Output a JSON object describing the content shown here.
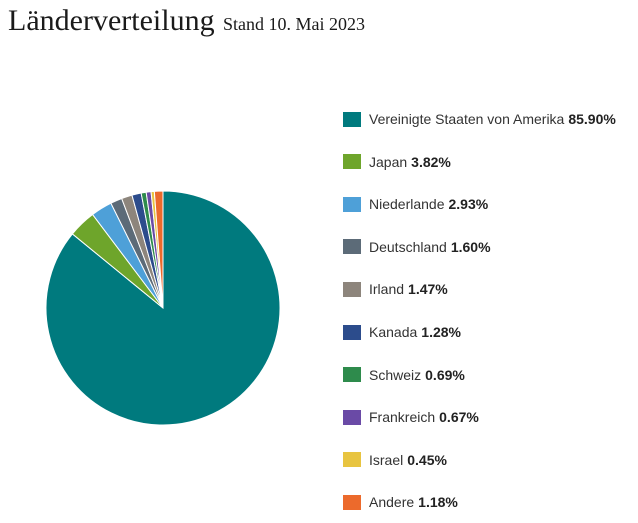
{
  "chart_data": {
    "type": "pie",
    "title": "Länderverteilung",
    "subtitle": "Stand 10. Mai 2023",
    "slices": [
      {
        "label": "Vereinigte Staaten von Amerika",
        "value": 85.9,
        "display": "85.90%",
        "color": "#007a7e"
      },
      {
        "label": "Japan",
        "value": 3.82,
        "display": "3.82%",
        "color": "#6ea52b"
      },
      {
        "label": "Niederlande",
        "value": 2.93,
        "display": "2.93%",
        "color": "#4ea0d8"
      },
      {
        "label": "Deutschland",
        "value": 1.6,
        "display": "1.60%",
        "color": "#5c6b78"
      },
      {
        "label": "Irland",
        "value": 1.47,
        "display": "1.47%",
        "color": "#8d857c"
      },
      {
        "label": "Kanada",
        "value": 1.28,
        "display": "1.28%",
        "color": "#2c4c8c"
      },
      {
        "label": "Schweiz",
        "value": 0.69,
        "display": "0.69%",
        "color": "#2e8b4c"
      },
      {
        "label": "Frankreich",
        "value": 0.67,
        "display": "0.67%",
        "color": "#6a4aa6"
      },
      {
        "label": "Israel",
        "value": 0.45,
        "display": "0.45%",
        "color": "#e8c440"
      },
      {
        "label": "Andere",
        "value": 1.18,
        "display": "1.18%",
        "color": "#ec6a2c"
      }
    ],
    "legend_position": "right"
  }
}
